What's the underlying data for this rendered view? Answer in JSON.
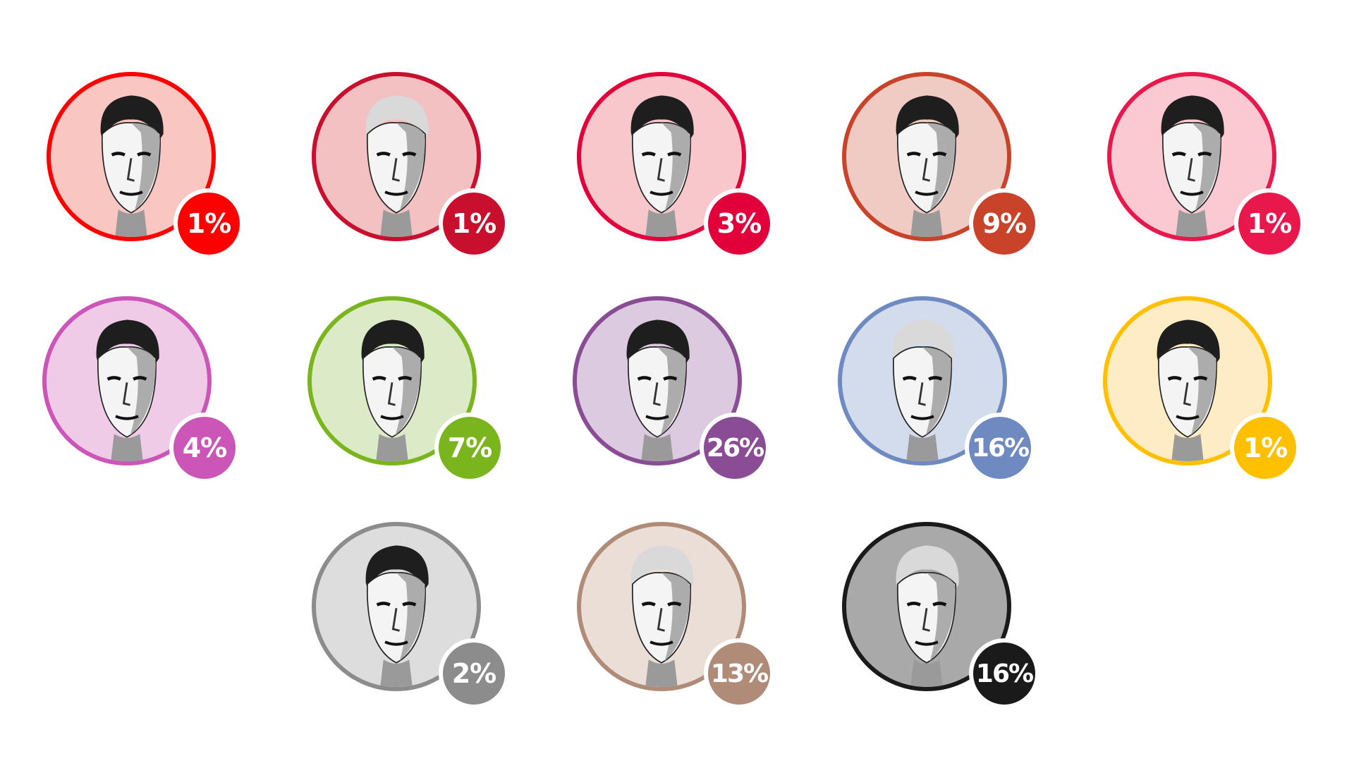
{
  "chart_data": {
    "type": "bubble-grid",
    "unit": "%",
    "rows": [
      [
        {
          "value": 1,
          "label": "1%",
          "color": "#ff0000",
          "bg": "#f9c6c2",
          "tone": "dark"
        },
        {
          "value": 1,
          "label": "1%",
          "color": "#c8102e",
          "bg": "#f3c1c1",
          "tone": "light"
        },
        {
          "value": 3,
          "label": "3%",
          "color": "#e2003b",
          "bg": "#f8c7cb",
          "tone": "dark"
        },
        {
          "value": 9,
          "label": "9%",
          "color": "#c9422a",
          "bg": "#efcbc4",
          "tone": "dark"
        },
        {
          "value": 1,
          "label": "1%",
          "color": "#e8174c",
          "bg": "#fbc9d2",
          "tone": "dark"
        }
      ],
      [
        {
          "value": 4,
          "label": "4%",
          "color": "#cc55b8",
          "bg": "#efcbe8",
          "tone": "dark"
        },
        {
          "value": 7,
          "label": "7%",
          "color": "#7ab51d",
          "bg": "#dbeac7",
          "tone": "dark"
        },
        {
          "value": 26,
          "label": "26%",
          "color": "#8b4c96",
          "bg": "#dccbe0",
          "tone": "dark"
        },
        {
          "value": 16,
          "label": "16%",
          "color": "#6f8ac0",
          "bg": "#d3dcec",
          "tone": "light"
        },
        {
          "value": 1,
          "label": "1%",
          "color": "#ffc000",
          "bg": "#fdecc4",
          "tone": "dark"
        }
      ],
      [
        {
          "value": 2,
          "label": "2%",
          "color": "#8c8c8c",
          "bg": "#dddddd",
          "tone": "dark"
        },
        {
          "value": 13,
          "label": "13%",
          "color": "#b08c78",
          "bg": "#eaded7",
          "tone": "light"
        },
        {
          "value": 16,
          "label": "16%",
          "color": "#1a1a1a",
          "bg": "#a9a9a9",
          "tone": "light"
        }
      ]
    ]
  }
}
